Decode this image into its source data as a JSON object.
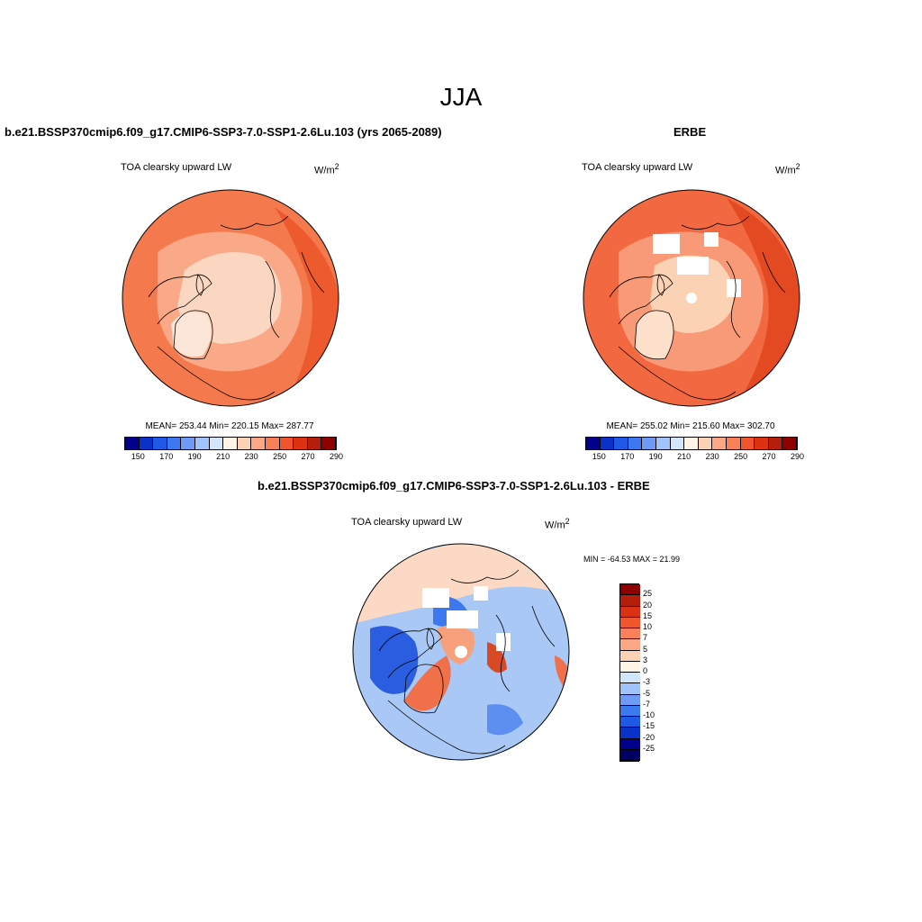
{
  "season_title": "JJA",
  "panels": [
    {
      "title": "b.e21.BSSP370cmip6.f09_g17.CMIP6-SSP3-7.0-SSP1-2.6Lu.103 (yrs 2065-2089)",
      "variable": "TOA clearsky upward LW",
      "units_base": "W/m",
      "units_exp": "2",
      "stats": "MEAN= 253.44  Min= 220.15  Max= 287.77"
    },
    {
      "title": "ERBE",
      "variable": "TOA clearsky upward LW",
      "units_base": "W/m",
      "units_exp": "2",
      "stats": "MEAN= 255.02  Min= 215.60  Max= 302.70"
    },
    {
      "title": "b.e21.BSSP370cmip6.f09_g17.CMIP6-SSP3-7.0-SSP1-2.6Lu.103 - ERBE",
      "variable": "TOA clearsky upward LW",
      "units_base": "W/m",
      "units_exp": "2",
      "stats": "MIN = -64.53 MAX =  21.99"
    }
  ],
  "abs_colorbar": {
    "colors": [
      "#00008b",
      "#0a32c8",
      "#1f5ae6",
      "#3c78f0",
      "#6e9bf5",
      "#a0c3fa",
      "#d2e6fa",
      "#fff5e6",
      "#fcd2b4",
      "#fca884",
      "#fa805a",
      "#f0552d",
      "#dc3214",
      "#b41e0a",
      "#8c0000"
    ],
    "tick_labels": [
      "150",
      "170",
      "190",
      "210",
      "230",
      "250",
      "270",
      "290"
    ]
  },
  "diff_colorbar": {
    "colors": [
      "#8c0000",
      "#b41e0a",
      "#dc3214",
      "#f0552d",
      "#fa805a",
      "#fca884",
      "#fcd2b4",
      "#fff5e6",
      "#d2e6fa",
      "#a0c3fa",
      "#6e9bf5",
      "#3c78f0",
      "#1f5ae6",
      "#0a32c8",
      "#00008b",
      "#000064"
    ],
    "tick_labels": [
      "25",
      "20",
      "15",
      "10",
      "7",
      "5",
      "3",
      "0",
      "-3",
      "-5",
      "-7",
      "-10",
      "-15",
      "-20",
      "-25"
    ]
  },
  "map_colors": {
    "ocean_base": "#f47a4e",
    "ocean_dark": "#ec5a2e",
    "land_light": "#fbd6c0",
    "land_mid": "#f9b69a",
    "diff_base": "#a9c8f6",
    "diff_blue": "#5d8ff0",
    "diff_dark": "#2a5de0",
    "diff_red": "#f0704a",
    "diff_pale": "#fcd9c4",
    "missing": "#ffffff"
  }
}
